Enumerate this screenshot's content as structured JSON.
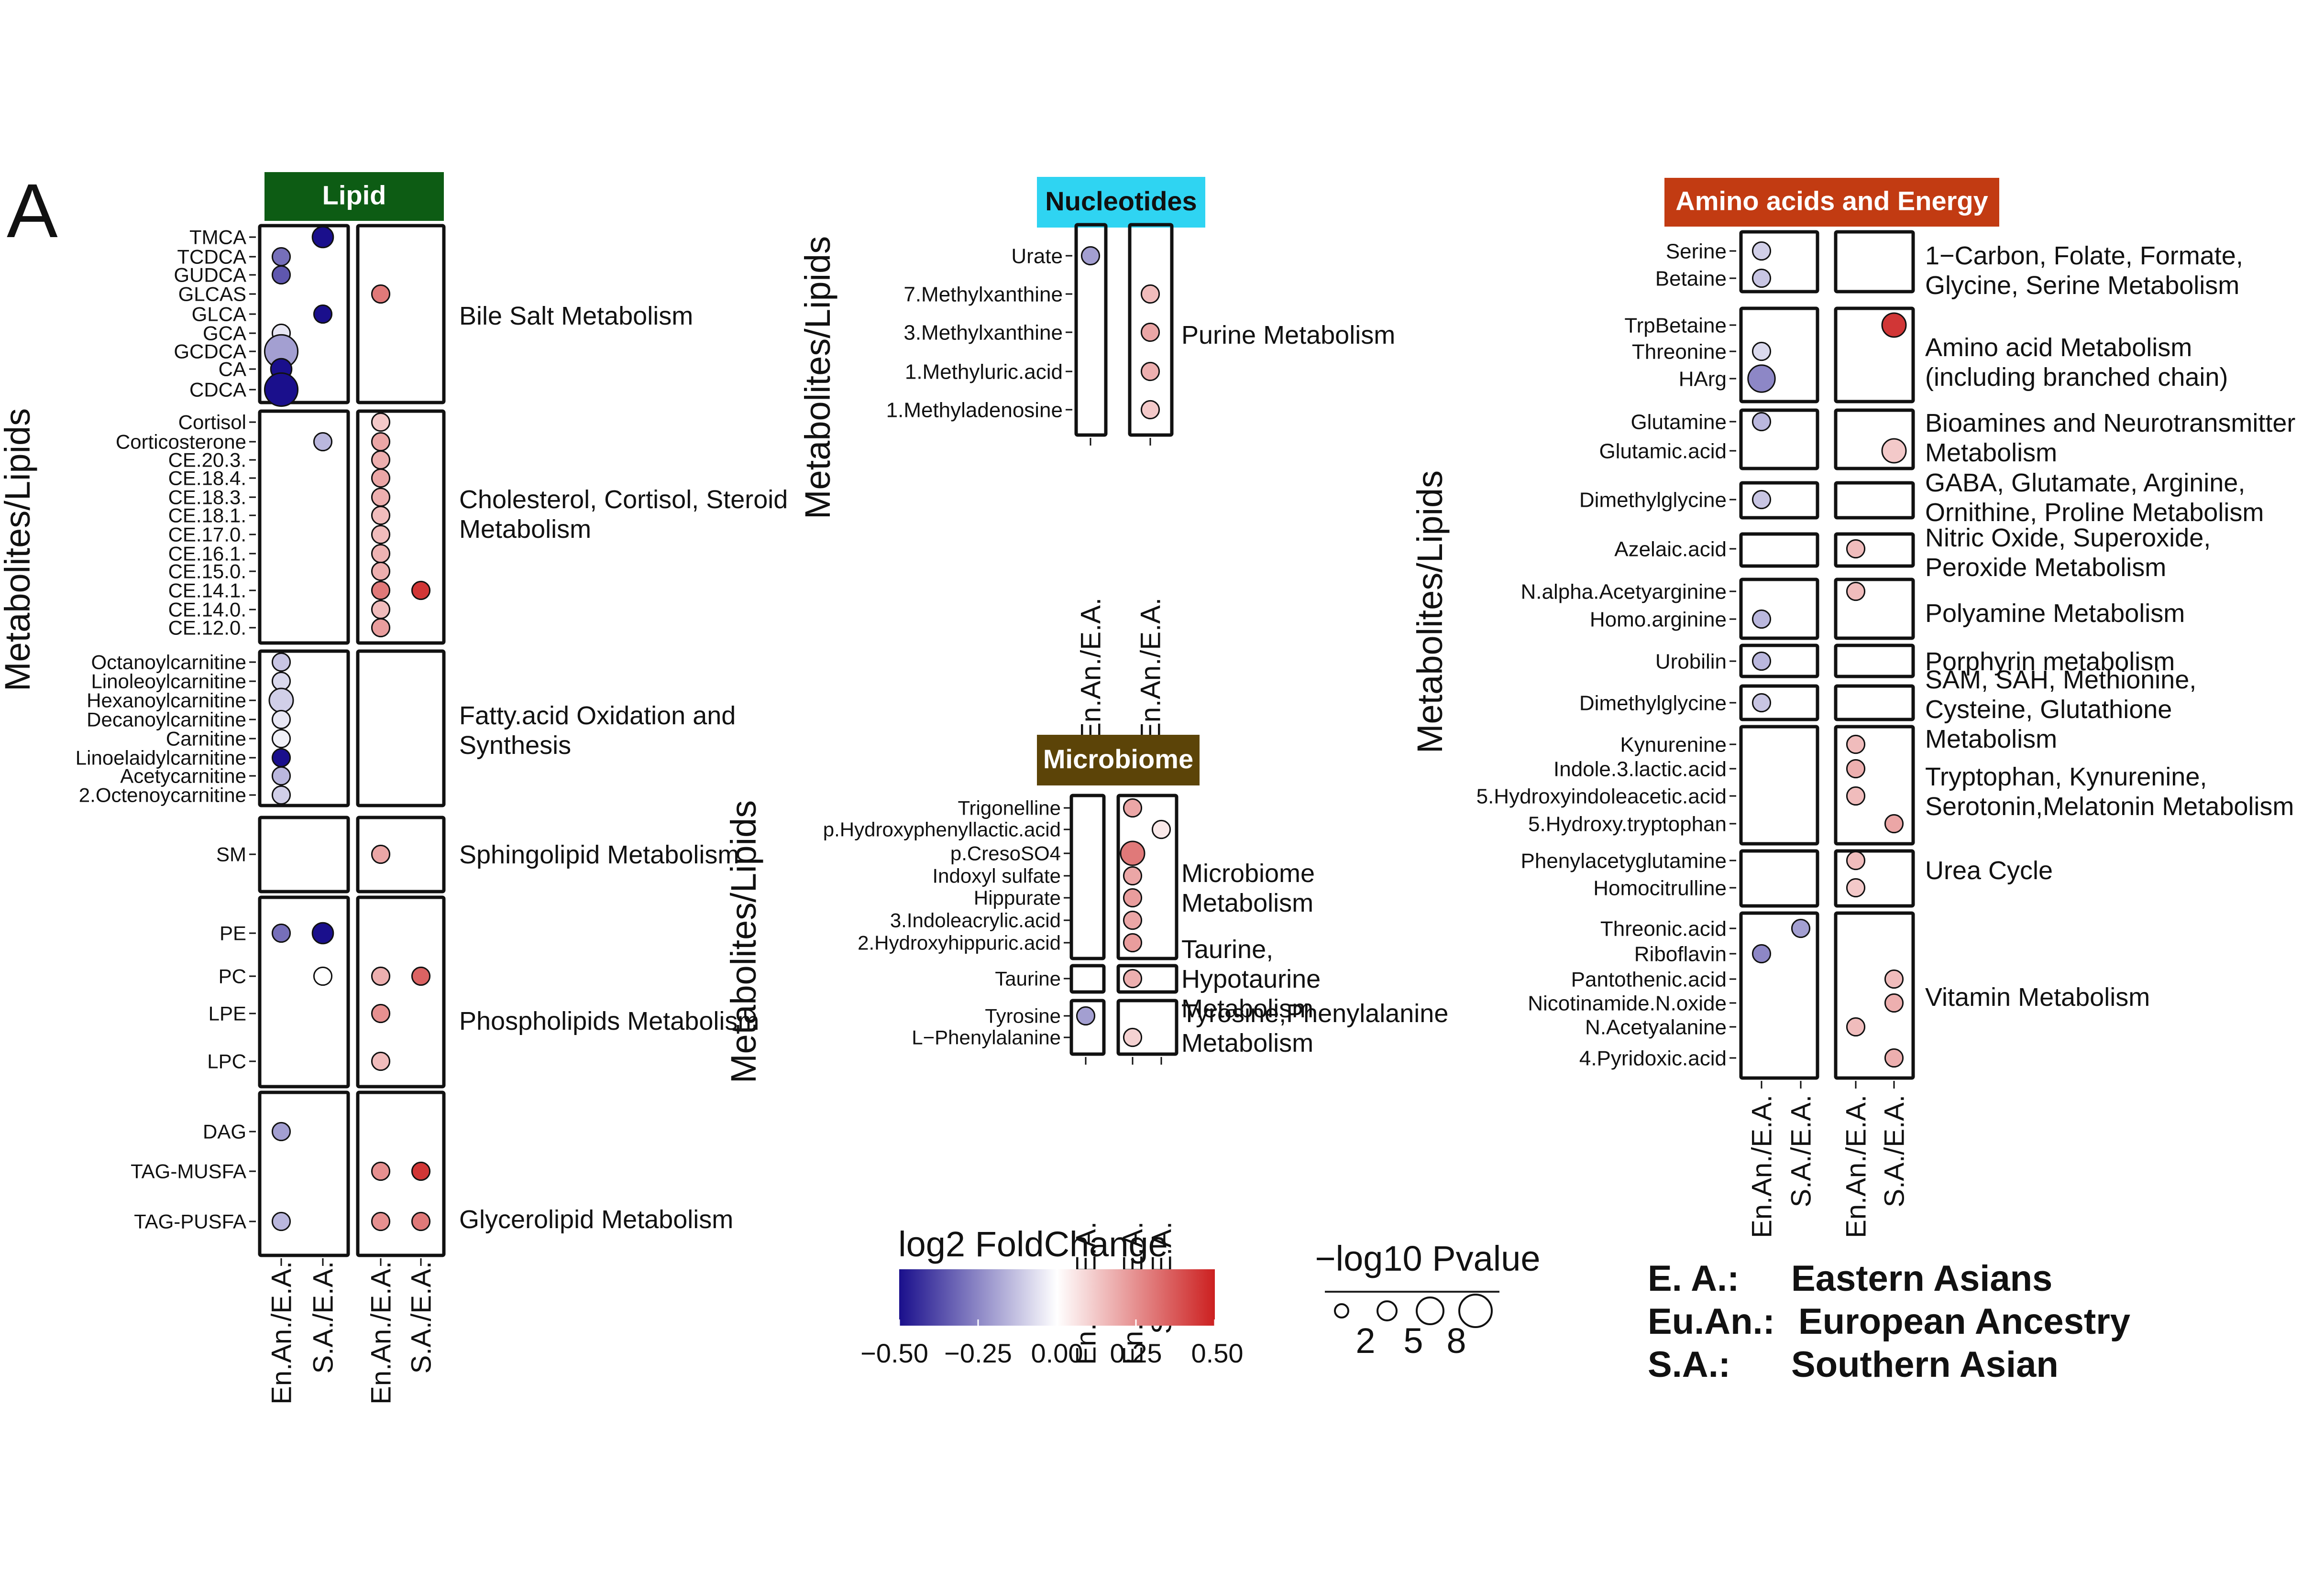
{
  "panel_label": "A",
  "y_axis_label": "Metabolites/Lipids",
  "legend": {
    "colorbar_title": "log2 FoldChange",
    "colorbar_ticks": [
      "−0.50",
      "−0.25",
      "0.00",
      "0.25",
      "0.50"
    ],
    "colorbar_colors": {
      "low": "#1a0f8c",
      "mid": "#ffffff",
      "high": "#cc2020"
    },
    "size_title": "−log10 Pvalue",
    "size_ticks": [
      "2",
      "5",
      "8"
    ],
    "abbreviations": [
      {
        "abbr": "E. A.:",
        "text": "Eastern Asians"
      },
      {
        "abbr": "Eu.An.:",
        "text": "European Ancestry"
      },
      {
        "abbr": "S.A.:",
        "text": "Southern Asian"
      }
    ]
  },
  "chart_data": [
    {
      "type": "scatter",
      "title": "Lipid",
      "title_color": "#0d5c14",
      "columns": [
        "En.An./E.A.",
        "S.A./E.A.",
        "En.An./E.A.",
        "S.A./E.A."
      ],
      "groups": [
        {
          "pathway": "Bile Salt Metabolism",
          "items": [
            "TMCA",
            "TCDCA",
            "GUDCA",
            "GLCAS",
            "GLCA",
            "GCA",
            "GCDCA",
            "CA",
            "CDCA"
          ],
          "points": [
            {
              "item": "TMCA",
              "col": 1,
              "fc": -0.5,
              "p": 4
            },
            {
              "item": "TCDCA",
              "col": 0,
              "fc": -0.3,
              "p": 3
            },
            {
              "item": "GUDCA",
              "col": 0,
              "fc": -0.35,
              "p": 3
            },
            {
              "item": "GLCAS",
              "col": 2,
              "fc": 0.3,
              "p": 3
            },
            {
              "item": "GLCA",
              "col": 1,
              "fc": -0.5,
              "p": 3
            },
            {
              "item": "GCA",
              "col": 0,
              "fc": -0.05,
              "p": 3
            },
            {
              "item": "GCDCA",
              "col": 0,
              "fc": -0.2,
              "p": 8
            },
            {
              "item": "CA",
              "col": 0,
              "fc": -0.5,
              "p": 4
            },
            {
              "item": "CDCA",
              "col": 0,
              "fc": -0.5,
              "p": 8
            }
          ]
        },
        {
          "pathway": "Cholesterol, Cortisol, Steroid Metabolism",
          "items": [
            "Cortisol",
            "Corticosterone",
            "CE.20.3.",
            "CE.18.4.",
            "CE.18.3.",
            "CE.18.1.",
            "CE.17.0.",
            "CE.16.1.",
            "CE.15.0.",
            "CE.14.1.",
            "CE.14.0.",
            "CE.12.0."
          ],
          "points": [
            {
              "item": "Cortisol",
              "col": 2,
              "fc": 0.12,
              "p": 3
            },
            {
              "item": "Corticosterone",
              "col": 1,
              "fc": -0.15,
              "p": 3
            },
            {
              "item": "Corticosterone",
              "col": 2,
              "fc": 0.2,
              "p": 3
            },
            {
              "item": "CE.20.3.",
              "col": 2,
              "fc": 0.18,
              "p": 3
            },
            {
              "item": "CE.18.4.",
              "col": 2,
              "fc": 0.2,
              "p": 3
            },
            {
              "item": "CE.18.3.",
              "col": 2,
              "fc": 0.18,
              "p": 3
            },
            {
              "item": "CE.18.1.",
              "col": 2,
              "fc": 0.15,
              "p": 3
            },
            {
              "item": "CE.17.0.",
              "col": 2,
              "fc": 0.15,
              "p": 3
            },
            {
              "item": "CE.16.1.",
              "col": 2,
              "fc": 0.17,
              "p": 3
            },
            {
              "item": "CE.15.0.",
              "col": 2,
              "fc": 0.18,
              "p": 3
            },
            {
              "item": "CE.14.1.",
              "col": 2,
              "fc": 0.3,
              "p": 3
            },
            {
              "item": "CE.14.1.",
              "col": 3,
              "fc": 0.45,
              "p": 3
            },
            {
              "item": "CE.14.0.",
              "col": 2,
              "fc": 0.15,
              "p": 3
            },
            {
              "item": "CE.12.0.",
              "col": 2,
              "fc": 0.22,
              "p": 3
            }
          ]
        },
        {
          "pathway": "Fatty.acid Oxidation and Synthesis",
          "items": [
            "Octanoylcarnitine",
            "Linoleoylcarnitine",
            "Hexanoylcarnitine",
            "Decanoylcarnitine",
            "Carnitine",
            "Linoelaidylcarnitine",
            "Acetycarnitine",
            "2.Octenoycarnitine"
          ],
          "points": [
            {
              "item": "Octanoylcarnitine",
              "col": 0,
              "fc": -0.12,
              "p": 3
            },
            {
              "item": "Linoleoylcarnitine",
              "col": 0,
              "fc": -0.08,
              "p": 3
            },
            {
              "item": "Hexanoylcarnitine",
              "col": 0,
              "fc": -0.1,
              "p": 5
            },
            {
              "item": "Decanoylcarnitine",
              "col": 0,
              "fc": -0.05,
              "p": 3
            },
            {
              "item": "Carnitine",
              "col": 0,
              "fc": -0.03,
              "p": 3
            },
            {
              "item": "Linoelaidylcarnitine",
              "col": 0,
              "fc": -0.5,
              "p": 3
            },
            {
              "item": "Acetycarnitine",
              "col": 0,
              "fc": -0.15,
              "p": 3
            },
            {
              "item": "2.Octenoycarnitine",
              "col": 0,
              "fc": -0.1,
              "p": 3
            }
          ]
        },
        {
          "pathway": "Sphingolipid Metabolism",
          "items": [
            "SM"
          ],
          "points": [
            {
              "item": "SM",
              "col": 2,
              "fc": 0.2,
              "p": 3
            }
          ]
        },
        {
          "pathway": "Phospholipids Metabolism",
          "items": [
            "PE",
            "PC",
            "LPE",
            "LPC"
          ],
          "points": [
            {
              "item": "PE",
              "col": 0,
              "fc": -0.3,
              "p": 3
            },
            {
              "item": "PE",
              "col": 1,
              "fc": -0.5,
              "p": 4
            },
            {
              "item": "PC",
              "col": 1,
              "fc": 0.0,
              "p": 3
            },
            {
              "item": "PC",
              "col": 2,
              "fc": 0.18,
              "p": 3
            },
            {
              "item": "PC",
              "col": 3,
              "fc": 0.35,
              "p": 3
            },
            {
              "item": "LPE",
              "col": 2,
              "fc": 0.25,
              "p": 3
            },
            {
              "item": "LPC",
              "col": 2,
              "fc": 0.15,
              "p": 3
            }
          ]
        },
        {
          "pathway": "Glycerolipid Metabolism",
          "items": [
            "DAG",
            "TAG-MUSFA",
            "TAG-PUSFA"
          ],
          "points": [
            {
              "item": "DAG",
              "col": 0,
              "fc": -0.2,
              "p": 3
            },
            {
              "item": "TAG-MUSFA",
              "col": 2,
              "fc": 0.25,
              "p": 3
            },
            {
              "item": "TAG-MUSFA",
              "col": 3,
              "fc": 0.45,
              "p": 3
            },
            {
              "item": "TAG-PUSFA",
              "col": 0,
              "fc": -0.15,
              "p": 3
            },
            {
              "item": "TAG-PUSFA",
              "col": 2,
              "fc": 0.25,
              "p": 3
            },
            {
              "item": "TAG-PUSFA",
              "col": 3,
              "fc": 0.3,
              "p": 3
            }
          ]
        }
      ]
    },
    {
      "type": "scatter",
      "title": "Nucleotides",
      "title_color": "#2fd4f2",
      "columns": [
        "En.An./E.A.",
        "En.An./E.A."
      ],
      "groups": [
        {
          "pathway": "Purine Metabolism",
          "items": [
            "Urate",
            "7.Methylxanthine",
            "3.Methylxanthine",
            "1.Methyluric.acid",
            "1.Methyladenosine"
          ],
          "points": [
            {
              "item": "Urate",
              "col": 0,
              "fc": -0.2,
              "p": 3
            },
            {
              "item": "7.Methylxanthine",
              "col": 1,
              "fc": 0.15,
              "p": 3
            },
            {
              "item": "3.Methylxanthine",
              "col": 1,
              "fc": 0.2,
              "p": 3
            },
            {
              "item": "1.Methyluric.acid",
              "col": 1,
              "fc": 0.18,
              "p": 3
            },
            {
              "item": "1.Methyladenosine",
              "col": 1,
              "fc": 0.12,
              "p": 3
            }
          ]
        }
      ]
    },
    {
      "type": "scatter",
      "title": "Microbiome",
      "title_color": "#5c4408",
      "columns": [
        "En.An./E.A.",
        "En.An./E.A.",
        "S.A./E.A."
      ],
      "groups": [
        {
          "pathway": "Microbiome Metabolism",
          "items": [
            "Trigonelline",
            "p.Hydroxyphenyllactic.acid",
            "p.CresoSO4",
            "Indoxyl sulfate",
            "Hippurate",
            "3.Indoleacrylic.acid",
            "2.Hydroxyhippuric.acid"
          ],
          "points": [
            {
              "item": "Trigonelline",
              "col": 1,
              "fc": 0.2,
              "p": 3
            },
            {
              "item": "p.Hydroxyphenyllactic.acid",
              "col": 2,
              "fc": 0.05,
              "p": 3
            },
            {
              "item": "p.CresoSO4",
              "col": 1,
              "fc": 0.3,
              "p": 5
            },
            {
              "item": "Indoxyl sulfate",
              "col": 1,
              "fc": 0.2,
              "p": 3
            },
            {
              "item": "Hippurate",
              "col": 1,
              "fc": 0.22,
              "p": 3
            },
            {
              "item": "3.Indoleacrylic.acid",
              "col": 1,
              "fc": 0.2,
              "p": 3
            },
            {
              "item": "2.Hydroxyhippuric.acid",
              "col": 1,
              "fc": 0.22,
              "p": 3
            }
          ]
        },
        {
          "pathway": "Taurine, Hypotaurine Metabolism",
          "items": [
            "Taurine"
          ],
          "points": [
            {
              "item": "Taurine",
              "col": 1,
              "fc": 0.18,
              "p": 3
            }
          ]
        },
        {
          "pathway": "Tyrosine,Phenylalanine Metabolism",
          "items": [
            "Tyrosine",
            "L−Phenylalanine"
          ],
          "points": [
            {
              "item": "Tyrosine",
              "col": 0,
              "fc": -0.2,
              "p": 3
            },
            {
              "item": "L−Phenylalanine",
              "col": 1,
              "fc": 0.1,
              "p": 3
            }
          ]
        }
      ]
    },
    {
      "type": "scatter",
      "title": "Amino acids and Energy",
      "title_color": "#c23b12",
      "columns": [
        "En.An./E.A.",
        "S.A./E.A.",
        "En.An./E.A.",
        "S.A./E.A."
      ],
      "groups": [
        {
          "pathway": "1−Carbon, Folate, Formate, Glycine, Serine Metabolism",
          "items": [
            "Serine",
            "Betaine"
          ],
          "points": [
            {
              "item": "Serine",
              "col": 0,
              "fc": -0.1,
              "p": 3
            },
            {
              "item": "Betaine",
              "col": 0,
              "fc": -0.12,
              "p": 3
            }
          ]
        },
        {
          "pathway": "Amino acid Metabolism (including branched chain)",
          "items": [
            "TrpBetaine",
            "Threonine",
            "HArg"
          ],
          "points": [
            {
              "item": "TrpBetaine",
              "col": 3,
              "fc": 0.45,
              "p": 5
            },
            {
              "item": "Threonine",
              "col": 0,
              "fc": -0.08,
              "p": 3
            },
            {
              "item": "HArg",
              "col": 0,
              "fc": -0.25,
              "p": 6
            }
          ]
        },
        {
          "pathway": "Bioamines and Neurotransmitter Metabolism",
          "items": [
            "Glutamine",
            "Glutamic.acid"
          ],
          "points": [
            {
              "item": "Glutamine",
              "col": 0,
              "fc": -0.15,
              "p": 3
            },
            {
              "item": "Glutamic.acid",
              "col": 3,
              "fc": 0.12,
              "p": 5
            }
          ]
        },
        {
          "pathway": "GABA, Glutamate, Arginine, Ornithine, Proline Metabolism",
          "items": [
            "Dimethylglycine"
          ],
          "points": [
            {
              "item": "Dimethylglycine",
              "col": 0,
              "fc": -0.12,
              "p": 3
            }
          ]
        },
        {
          "pathway": "Nitric Oxide, Superoxide, Peroxide Metabolism",
          "items": [
            "Azelaic.acid"
          ],
          "points": [
            {
              "item": "Azelaic.acid",
              "col": 2,
              "fc": 0.15,
              "p": 3
            }
          ]
        },
        {
          "pathway": "Polyamine Metabolism",
          "items": [
            "N.alpha.Acetyarginine",
            "Homo.arginine"
          ],
          "points": [
            {
              "item": "N.alpha.Acetyarginine",
              "col": 2,
              "fc": 0.15,
              "p": 3
            },
            {
              "item": "Homo.arginine",
              "col": 0,
              "fc": -0.15,
              "p": 3
            }
          ]
        },
        {
          "pathway": "Porphyrin metabolism",
          "items": [
            "Urobilin"
          ],
          "points": [
            {
              "item": "Urobilin",
              "col": 0,
              "fc": -0.15,
              "p": 3
            }
          ]
        },
        {
          "pathway": "SAM, SAH, Methionine, Cysteine, Glutathione Metabolism",
          "items": [
            "Dimethylglycine"
          ],
          "points": [
            {
              "item": "Dimethylglycine",
              "col": 0,
              "fc": -0.12,
              "p": 3
            }
          ]
        },
        {
          "pathway": "Tryptophan, Kynurenine, Serotonin,Melatonin Metabolism",
          "items": [
            "Kynurenine",
            "Indole.3.lactic.acid",
            "5.Hydroxyindoleacetic.acid",
            "5.Hydroxy.tryptophan"
          ],
          "points": [
            {
              "item": "Kynurenine",
              "col": 2,
              "fc": 0.15,
              "p": 3
            },
            {
              "item": "Indole.3.lactic.acid",
              "col": 2,
              "fc": 0.18,
              "p": 3
            },
            {
              "item": "5.Hydroxyindoleacetic.acid",
              "col": 2,
              "fc": 0.15,
              "p": 3
            },
            {
              "item": "5.Hydroxy.tryptophan",
              "col": 3,
              "fc": 0.2,
              "p": 3
            }
          ]
        },
        {
          "pathway": "Urea Cycle",
          "items": [
            "Phenylacetyglutamine",
            "Homocitrulline"
          ],
          "points": [
            {
              "item": "Phenylacetyglutamine",
              "col": 2,
              "fc": 0.15,
              "p": 3
            },
            {
              "item": "Homocitrulline",
              "col": 2,
              "fc": 0.12,
              "p": 3
            }
          ]
        },
        {
          "pathway": "Vitamin Metabolism",
          "items": [
            "Threonic.acid",
            "Riboflavin",
            "Pantothenic.acid",
            "Nicotinamide.N.oxide",
            "N.Acetyalanine",
            "4.Pyridoxic.acid"
          ],
          "points": [
            {
              "item": "Threonic.acid",
              "col": 1,
              "fc": -0.2,
              "p": 3
            },
            {
              "item": "Riboflavin",
              "col": 0,
              "fc": -0.25,
              "p": 3
            },
            {
              "item": "Pantothenic.acid",
              "col": 3,
              "fc": 0.15,
              "p": 3
            },
            {
              "item": "Nicotinamide.N.oxide",
              "col": 3,
              "fc": 0.18,
              "p": 3
            },
            {
              "item": "N.Acetyalanine",
              "col": 2,
              "fc": 0.15,
              "p": 3
            },
            {
              "item": "4.Pyridoxic.acid",
              "col": 3,
              "fc": 0.18,
              "p": 3
            }
          ]
        }
      ]
    }
  ]
}
